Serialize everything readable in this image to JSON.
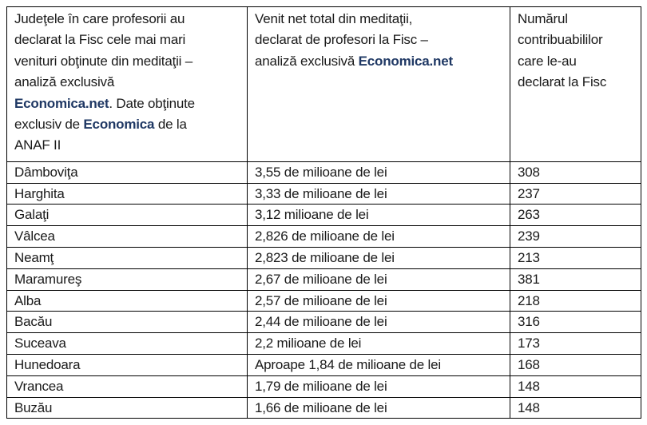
{
  "colors": {
    "brand_blue": "#1F3864",
    "text": "#1a1a1a",
    "border": "#000000",
    "background": "#ffffff"
  },
  "header": {
    "col1": {
      "text1": "Judeţele în care profesorii au\ndeclarat la Fisc cele mai mari\nvenituri obţinute din meditaţii –\nanaliză exclusivă\n",
      "brand1": "Economica.net",
      "text2": ". Date obţinute\nexclusiv de ",
      "brand2": "Economica",
      "text3": " de la\nANAF II"
    },
    "col2": {
      "text1": "Venit net total din meditaţii,\ndeclarat de profesori la Fisc –\nanaliză exclusivă ",
      "brand1": "Economica.net"
    },
    "col3": {
      "text1": "Numărul\ncontribuabililor\ncare le-au\ndeclarat la Fisc"
    }
  },
  "chart_data": {
    "type": "table",
    "title": "Judeţele în care profesorii au declarat la Fisc cele mai mari venituri obţinute din meditaţii – analiză exclusivă Economica.net",
    "columns": [
      "Judeţele în care profesorii au declarat la Fisc cele mai mari venituri obţinute din meditaţii – analiză exclusivă Economica.net. Date obţinute exclusiv de Economica de la ANAF II",
      "Venit net total din meditaţii, declarat de profesori la Fisc – analiză exclusivă Economica.net",
      "Numărul contribuabililor care le-au declarat la Fisc"
    ],
    "rows": [
      [
        "Dâmboviţa",
        "3,55 de milioane de lei",
        "308"
      ],
      [
        "Harghita",
        "3,33 de milioane de lei",
        "237"
      ],
      [
        "Galaţi",
        "3,12 milioane de lei",
        "263"
      ],
      [
        "Vâlcea",
        "2,826 de milioane de lei",
        "239"
      ],
      [
        "Neamţ",
        "2,823 de milioane de lei",
        "213"
      ],
      [
        "Maramureş",
        "2,67 de milioane de lei",
        "381"
      ],
      [
        "Alba",
        "2,57 de milioane de lei",
        "218"
      ],
      [
        "Bacău",
        "2,44 de milioane de lei",
        "316"
      ],
      [
        "Suceava",
        "2,2 milioane de lei",
        "173"
      ],
      [
        "Hunedoara",
        "Aproape 1,84 de milioane de lei",
        "168"
      ],
      [
        "Vrancea",
        "1,79 de milioane de lei",
        "148"
      ],
      [
        "Buzău",
        "1,66 de milioane de lei",
        "148"
      ]
    ],
    "counts_numeric": [
      308,
      237,
      263,
      239,
      213,
      381,
      218,
      316,
      173,
      168,
      148,
      148
    ],
    "income_millions_lei": [
      3.55,
      3.33,
      3.12,
      2.826,
      2.823,
      2.67,
      2.57,
      2.44,
      2.2,
      1.84,
      1.79,
      1.66
    ]
  }
}
